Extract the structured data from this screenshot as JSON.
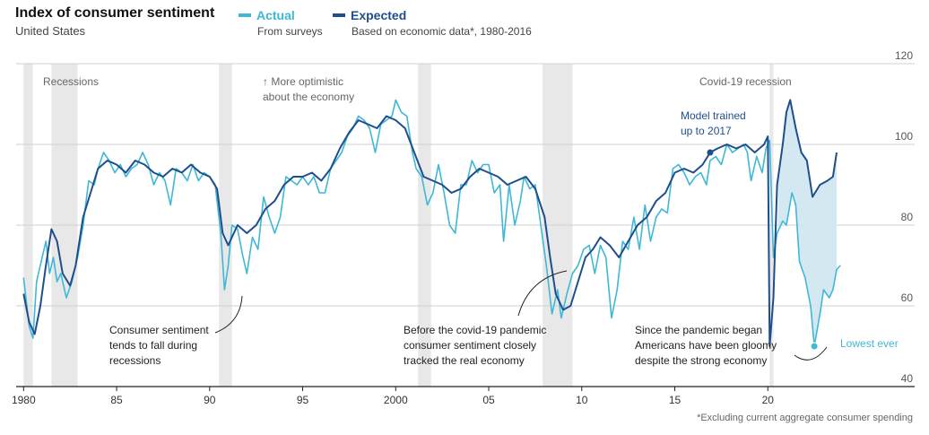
{
  "header": {
    "title": "Index of consumer sentiment",
    "subtitle": "United States"
  },
  "legend": [
    {
      "name": "Actual",
      "desc": "From surveys",
      "color": "#3fb8d6"
    },
    {
      "name": "Expected",
      "desc": "Based on economic data*, 1980-2016",
      "color": "#1f4e8c"
    }
  ],
  "footnote": "*Excluding current aggregate consumer spending",
  "annotations": {
    "recessions": "Recessions",
    "optimistic": [
      "↑ More optimistic",
      "about the economy"
    ],
    "covid_recession": "Covid-19 recession",
    "model_trained": [
      "Model trained",
      "up to 2017"
    ],
    "recession_note": [
      "Consumer sentiment",
      "tends to fall during",
      "recessions"
    ],
    "pandemic_note": [
      "Before the covid-19 pandemic",
      "consumer sentiment closely",
      "tracked the real economy"
    ],
    "gloomy_note": [
      "Since the pandemic began",
      "Americans have been gloomy",
      "despite the strong economy"
    ],
    "lowest": "Lowest ever"
  },
  "chart_data": {
    "type": "line",
    "title": "Index of consumer sentiment",
    "subtitle": "United States",
    "xlim": [
      1979.6,
      2025
    ],
    "ylim": [
      40,
      120
    ],
    "x_ticks": [
      1980,
      1985,
      1990,
      1995,
      2000,
      2005,
      2010,
      2015,
      2020
    ],
    "x_tick_labels": [
      "1980",
      "85",
      "90",
      "95",
      "2000",
      "05",
      "10",
      "15",
      "20"
    ],
    "y_ticks": [
      40,
      60,
      80,
      100,
      120
    ],
    "y_tick_labels": [
      "40",
      "60",
      "80",
      "100",
      "120"
    ],
    "grid": "horizontal",
    "recessions": [
      [
        1980.0,
        1980.5
      ],
      [
        1981.5,
        1982.9
      ],
      [
        1990.5,
        1991.2
      ],
      [
        2001.2,
        2001.9
      ],
      [
        2007.9,
        2009.5
      ],
      [
        2020.1,
        2020.3
      ]
    ],
    "series": [
      {
        "name": "Actual",
        "color": "#3fb8d6",
        "points": [
          [
            1980.0,
            67
          ],
          [
            1980.3,
            55
          ],
          [
            1980.5,
            52
          ],
          [
            1980.7,
            66
          ],
          [
            1981.0,
            72
          ],
          [
            1981.2,
            76
          ],
          [
            1981.4,
            68
          ],
          [
            1981.6,
            72
          ],
          [
            1981.8,
            66
          ],
          [
            1982.0,
            68
          ],
          [
            1982.3,
            62
          ],
          [
            1982.6,
            66
          ],
          [
            1982.9,
            72
          ],
          [
            1983.2,
            80
          ],
          [
            1983.5,
            91
          ],
          [
            1983.8,
            90
          ],
          [
            1984.0,
            94
          ],
          [
            1984.3,
            98
          ],
          [
            1984.6,
            96
          ],
          [
            1984.9,
            93
          ],
          [
            1985.2,
            95
          ],
          [
            1985.5,
            92
          ],
          [
            1985.8,
            94
          ],
          [
            1986.1,
            95
          ],
          [
            1986.4,
            98
          ],
          [
            1986.7,
            95
          ],
          [
            1987.0,
            90
          ],
          [
            1987.3,
            93
          ],
          [
            1987.6,
            91
          ],
          [
            1987.9,
            85
          ],
          [
            1988.2,
            94
          ],
          [
            1988.5,
            93
          ],
          [
            1988.8,
            91
          ],
          [
            1989.1,
            95
          ],
          [
            1989.4,
            91
          ],
          [
            1989.7,
            93
          ],
          [
            1990.0,
            92
          ],
          [
            1990.3,
            90
          ],
          [
            1990.6,
            78
          ],
          [
            1990.8,
            64
          ],
          [
            1991.0,
            70
          ],
          [
            1991.2,
            80
          ],
          [
            1991.5,
            79
          ],
          [
            1991.8,
            72
          ],
          [
            1992.0,
            68
          ],
          [
            1992.3,
            77
          ],
          [
            1992.6,
            74
          ],
          [
            1992.9,
            87
          ],
          [
            1993.2,
            82
          ],
          [
            1993.5,
            78
          ],
          [
            1993.8,
            82
          ],
          [
            1994.1,
            92
          ],
          [
            1994.4,
            91
          ],
          [
            1994.7,
            90
          ],
          [
            1995.0,
            92
          ],
          [
            1995.3,
            90
          ],
          [
            1995.6,
            92
          ],
          [
            1995.9,
            88
          ],
          [
            1996.2,
            88
          ],
          [
            1996.5,
            94
          ],
          [
            1996.8,
            96
          ],
          [
            1997.1,
            98
          ],
          [
            1997.4,
            102
          ],
          [
            1997.7,
            104
          ],
          [
            1998.0,
            107
          ],
          [
            1998.3,
            106
          ],
          [
            1998.6,
            104
          ],
          [
            1998.9,
            98
          ],
          [
            1999.2,
            105
          ],
          [
            1999.5,
            106
          ],
          [
            1999.8,
            107
          ],
          [
            2000.0,
            111
          ],
          [
            2000.3,
            108
          ],
          [
            2000.6,
            107
          ],
          [
            2000.9,
            98
          ],
          [
            2001.1,
            94
          ],
          [
            2001.4,
            92
          ],
          [
            2001.7,
            85
          ],
          [
            2002.0,
            88
          ],
          [
            2002.3,
            95
          ],
          [
            2002.6,
            88
          ],
          [
            2002.9,
            80
          ],
          [
            2003.2,
            78
          ],
          [
            2003.5,
            90
          ],
          [
            2003.8,
            90
          ],
          [
            2004.1,
            96
          ],
          [
            2004.4,
            93
          ],
          [
            2004.7,
            95
          ],
          [
            2005.0,
            95
          ],
          [
            2005.3,
            88
          ],
          [
            2005.6,
            90
          ],
          [
            2005.8,
            76
          ],
          [
            2006.1,
            90
          ],
          [
            2006.4,
            80
          ],
          [
            2006.7,
            86
          ],
          [
            2006.9,
            92
          ],
          [
            2007.2,
            89
          ],
          [
            2007.5,
            90
          ],
          [
            2007.8,
            80
          ],
          [
            2008.1,
            70
          ],
          [
            2008.4,
            58
          ],
          [
            2008.7,
            64
          ],
          [
            2008.9,
            57
          ],
          [
            2009.2,
            63
          ],
          [
            2009.5,
            68
          ],
          [
            2009.8,
            70
          ],
          [
            2010.1,
            74
          ],
          [
            2010.4,
            75
          ],
          [
            2010.7,
            68
          ],
          [
            2011.0,
            75
          ],
          [
            2011.3,
            72
          ],
          [
            2011.6,
            57
          ],
          [
            2011.9,
            64
          ],
          [
            2012.2,
            76
          ],
          [
            2012.5,
            74
          ],
          [
            2012.8,
            82
          ],
          [
            2013.1,
            74
          ],
          [
            2013.4,
            85
          ],
          [
            2013.7,
            76
          ],
          [
            2014.0,
            82
          ],
          [
            2014.3,
            84
          ],
          [
            2014.6,
            83
          ],
          [
            2014.9,
            94
          ],
          [
            2015.2,
            95
          ],
          [
            2015.5,
            93
          ],
          [
            2015.8,
            90
          ],
          [
            2016.1,
            92
          ],
          [
            2016.4,
            93
          ],
          [
            2016.7,
            90
          ],
          [
            2016.9,
            96
          ],
          [
            2017.2,
            97
          ],
          [
            2017.5,
            95
          ],
          [
            2017.8,
            100
          ],
          [
            2018.1,
            98
          ],
          [
            2018.4,
            99
          ],
          [
            2018.7,
            100
          ],
          [
            2018.9,
            98
          ],
          [
            2019.1,
            91
          ],
          [
            2019.4,
            97
          ],
          [
            2019.7,
            93
          ],
          [
            2019.9,
            99
          ],
          [
            2020.1,
            101
          ],
          [
            2020.3,
            72
          ],
          [
            2020.5,
            78
          ],
          [
            2020.8,
            81
          ],
          [
            2021.0,
            80
          ],
          [
            2021.3,
            88
          ],
          [
            2021.5,
            85
          ],
          [
            2021.7,
            71
          ],
          [
            2022.0,
            67
          ],
          [
            2022.3,
            60
          ],
          [
            2022.5,
            50
          ],
          [
            2022.8,
            58
          ],
          [
            2023.0,
            64
          ],
          [
            2023.3,
            62
          ],
          [
            2023.5,
            64
          ],
          [
            2023.7,
            69
          ],
          [
            2023.9,
            70
          ]
        ]
      },
      {
        "name": "Expected",
        "color": "#1f4e8c",
        "points": [
          [
            1980.0,
            63
          ],
          [
            1980.3,
            56
          ],
          [
            1980.6,
            53
          ],
          [
            1980.9,
            60
          ],
          [
            1981.2,
            70
          ],
          [
            1981.5,
            79
          ],
          [
            1981.8,
            76
          ],
          [
            1982.1,
            68
          ],
          [
            1982.5,
            65
          ],
          [
            1982.8,
            70
          ],
          [
            1983.2,
            82
          ],
          [
            1983.6,
            88
          ],
          [
            1984.0,
            94
          ],
          [
            1984.5,
            96
          ],
          [
            1985.0,
            95
          ],
          [
            1985.5,
            93
          ],
          [
            1986.0,
            96
          ],
          [
            1986.5,
            95
          ],
          [
            1987.0,
            93
          ],
          [
            1987.5,
            92
          ],
          [
            1988.0,
            94
          ],
          [
            1988.5,
            93
          ],
          [
            1989.0,
            95
          ],
          [
            1989.5,
            93
          ],
          [
            1990.0,
            92
          ],
          [
            1990.4,
            89
          ],
          [
            1990.7,
            78
          ],
          [
            1991.0,
            75
          ],
          [
            1991.5,
            80
          ],
          [
            1992.0,
            78
          ],
          [
            1992.5,
            80
          ],
          [
            1993.0,
            84
          ],
          [
            1993.5,
            86
          ],
          [
            1994.0,
            90
          ],
          [
            1994.5,
            92
          ],
          [
            1995.0,
            92
          ],
          [
            1995.5,
            93
          ],
          [
            1996.0,
            91
          ],
          [
            1996.5,
            94
          ],
          [
            1997.0,
            99
          ],
          [
            1997.5,
            103
          ],
          [
            1998.0,
            106
          ],
          [
            1998.5,
            105
          ],
          [
            1999.0,
            104
          ],
          [
            1999.5,
            107
          ],
          [
            2000.0,
            106
          ],
          [
            2000.5,
            104
          ],
          [
            2001.0,
            98
          ],
          [
            2001.5,
            92
          ],
          [
            2002.0,
            91
          ],
          [
            2002.5,
            90
          ],
          [
            2003.0,
            88
          ],
          [
            2003.5,
            89
          ],
          [
            2004.0,
            92
          ],
          [
            2004.5,
            94
          ],
          [
            2005.0,
            93
          ],
          [
            2005.5,
            92
          ],
          [
            2006.0,
            90
          ],
          [
            2006.5,
            91
          ],
          [
            2007.0,
            92
          ],
          [
            2007.5,
            89
          ],
          [
            2008.0,
            82
          ],
          [
            2008.3,
            72
          ],
          [
            2008.6,
            63
          ],
          [
            2009.0,
            59
          ],
          [
            2009.4,
            60
          ],
          [
            2009.8,
            66
          ],
          [
            2010.2,
            72
          ],
          [
            2010.6,
            74
          ],
          [
            2011.0,
            77
          ],
          [
            2011.5,
            75
          ],
          [
            2012.0,
            72
          ],
          [
            2012.5,
            76
          ],
          [
            2013.0,
            80
          ],
          [
            2013.5,
            82
          ],
          [
            2014.0,
            86
          ],
          [
            2014.5,
            88
          ],
          [
            2015.0,
            93
          ],
          [
            2015.5,
            94
          ],
          [
            2016.0,
            93
          ],
          [
            2016.5,
            95
          ],
          [
            2016.9,
            98
          ],
          [
            2017.3,
            99
          ],
          [
            2017.8,
            100
          ],
          [
            2018.3,
            99
          ],
          [
            2018.8,
            100
          ],
          [
            2019.3,
            98
          ],
          [
            2019.8,
            100
          ],
          [
            2020.0,
            102
          ],
          [
            2020.1,
            50
          ],
          [
            2020.3,
            62
          ],
          [
            2020.5,
            90
          ],
          [
            2020.8,
            100
          ],
          [
            2021.0,
            108
          ],
          [
            2021.2,
            111
          ],
          [
            2021.5,
            104
          ],
          [
            2021.8,
            98
          ],
          [
            2022.1,
            96
          ],
          [
            2022.4,
            87
          ],
          [
            2022.8,
            90
          ],
          [
            2023.2,
            91
          ],
          [
            2023.5,
            92
          ],
          [
            2023.7,
            98
          ]
        ]
      }
    ]
  }
}
